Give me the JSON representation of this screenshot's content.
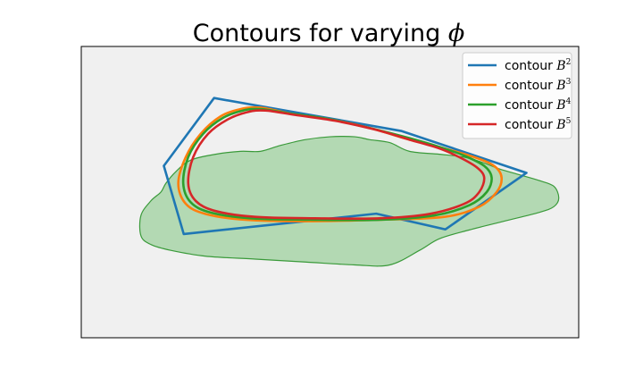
{
  "chart_data": {
    "type": "line",
    "title": {
      "text": "Contours for varying ",
      "symbol": "ϕ"
    },
    "xlabel": "",
    "ylabel": "",
    "grid": false,
    "axes_visible": false,
    "legend_placement": "top-right",
    "colors": {
      "plot_background": "#f0f0f0",
      "region_fill": "#b3d9b3",
      "region_edge": "#3a9a3a"
    },
    "region": {
      "points": [
        [
          0.36,
          0.64
        ],
        [
          0.4,
          0.66
        ],
        [
          0.45,
          0.68
        ],
        [
          0.5,
          0.69
        ],
        [
          0.55,
          0.69
        ],
        [
          0.58,
          0.68
        ],
        [
          0.62,
          0.67
        ],
        [
          0.66,
          0.64
        ],
        [
          0.72,
          0.63
        ],
        [
          0.77,
          0.62
        ],
        [
          0.81,
          0.6
        ],
        [
          0.84,
          0.58
        ],
        [
          0.88,
          0.56
        ],
        [
          0.92,
          0.54
        ],
        [
          0.95,
          0.52
        ],
        [
          0.96,
          0.48
        ],
        [
          0.95,
          0.45
        ],
        [
          0.92,
          0.43
        ],
        [
          0.85,
          0.4
        ],
        [
          0.78,
          0.37
        ],
        [
          0.72,
          0.34
        ],
        [
          0.68,
          0.3
        ],
        [
          0.62,
          0.25
        ],
        [
          0.55,
          0.25
        ],
        [
          0.45,
          0.26
        ],
        [
          0.35,
          0.27
        ],
        [
          0.25,
          0.28
        ],
        [
          0.18,
          0.3
        ],
        [
          0.14,
          0.32
        ],
        [
          0.12,
          0.35
        ],
        [
          0.12,
          0.42
        ],
        [
          0.14,
          0.47
        ],
        [
          0.16,
          0.5
        ],
        [
          0.17,
          0.53
        ],
        [
          0.19,
          0.57
        ],
        [
          0.22,
          0.61
        ],
        [
          0.27,
          0.63
        ],
        [
          0.32,
          0.64
        ]
      ]
    },
    "series": [
      {
        "label": "contour",
        "symbol": "B",
        "exponent": "2",
        "color": "#1f77b4",
        "closed": true,
        "points": [
          [
            0.267,
            0.823
          ],
          [
            0.643,
            0.71
          ],
          [
            0.895,
            0.566
          ],
          [
            0.732,
            0.372
          ],
          [
            0.593,
            0.426
          ],
          [
            0.206,
            0.356
          ],
          [
            0.166,
            0.59
          ]
        ]
      },
      {
        "label": "contour",
        "symbol": "B",
        "exponent": "3",
        "color": "#ff7f0e",
        "closed": true,
        "points": [
          [
            0.36,
            0.79
          ],
          [
            0.42,
            0.77
          ],
          [
            0.5,
            0.75
          ],
          [
            0.58,
            0.72
          ],
          [
            0.66,
            0.68
          ],
          [
            0.73,
            0.65
          ],
          [
            0.79,
            0.62
          ],
          [
            0.83,
            0.59
          ],
          [
            0.845,
            0.55
          ],
          [
            0.835,
            0.5
          ],
          [
            0.8,
            0.45
          ],
          [
            0.73,
            0.415
          ],
          [
            0.6,
            0.405
          ],
          [
            0.45,
            0.4
          ],
          [
            0.33,
            0.405
          ],
          [
            0.25,
            0.425
          ],
          [
            0.21,
            0.46
          ],
          [
            0.195,
            0.53
          ],
          [
            0.21,
            0.62
          ],
          [
            0.24,
            0.7
          ],
          [
            0.28,
            0.76
          ],
          [
            0.32,
            0.785
          ]
        ]
      },
      {
        "label": "contour",
        "symbol": "B",
        "exponent": "4",
        "color": "#2ca02c",
        "closed": true,
        "points": [
          [
            0.36,
            0.785
          ],
          [
            0.42,
            0.77
          ],
          [
            0.5,
            0.75
          ],
          [
            0.58,
            0.72
          ],
          [
            0.66,
            0.685
          ],
          [
            0.72,
            0.655
          ],
          [
            0.77,
            0.625
          ],
          [
            0.81,
            0.59
          ],
          [
            0.825,
            0.55
          ],
          [
            0.815,
            0.5
          ],
          [
            0.78,
            0.455
          ],
          [
            0.71,
            0.42
          ],
          [
            0.6,
            0.405
          ],
          [
            0.46,
            0.405
          ],
          [
            0.34,
            0.41
          ],
          [
            0.26,
            0.43
          ],
          [
            0.22,
            0.465
          ],
          [
            0.205,
            0.53
          ],
          [
            0.215,
            0.62
          ],
          [
            0.245,
            0.7
          ],
          [
            0.285,
            0.755
          ],
          [
            0.325,
            0.78
          ]
        ]
      },
      {
        "label": "contour",
        "symbol": "B",
        "exponent": "5",
        "color": "#d62728",
        "closed": true,
        "points": [
          [
            0.37,
            0.78
          ],
          [
            0.43,
            0.765
          ],
          [
            0.51,
            0.745
          ],
          [
            0.59,
            0.715
          ],
          [
            0.66,
            0.68
          ],
          [
            0.72,
            0.65
          ],
          [
            0.76,
            0.62
          ],
          [
            0.795,
            0.585
          ],
          [
            0.81,
            0.55
          ],
          [
            0.8,
            0.5
          ],
          [
            0.77,
            0.46
          ],
          [
            0.7,
            0.425
          ],
          [
            0.6,
            0.41
          ],
          [
            0.47,
            0.41
          ],
          [
            0.35,
            0.415
          ],
          [
            0.27,
            0.435
          ],
          [
            0.23,
            0.47
          ],
          [
            0.215,
            0.53
          ],
          [
            0.225,
            0.62
          ],
          [
            0.255,
            0.7
          ],
          [
            0.295,
            0.75
          ],
          [
            0.335,
            0.775
          ]
        ]
      }
    ]
  }
}
